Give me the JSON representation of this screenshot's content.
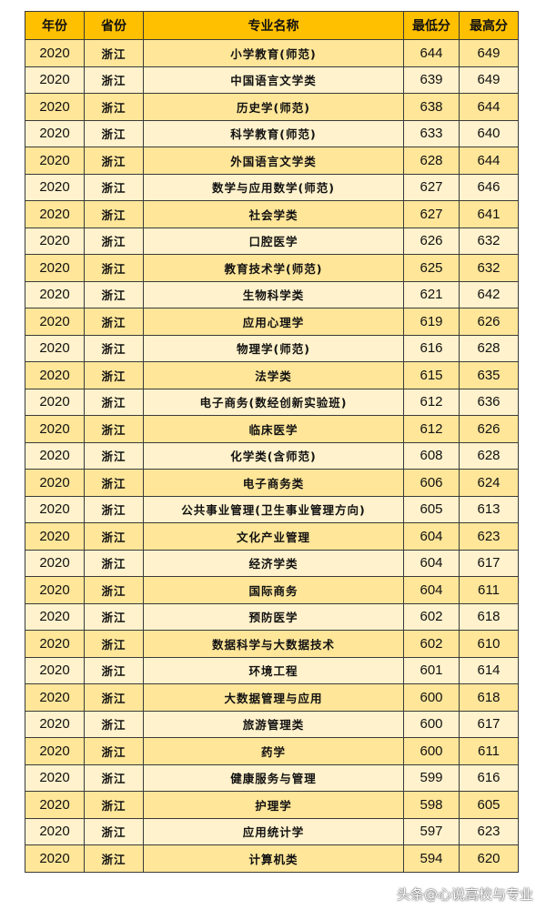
{
  "table": {
    "headers": [
      "年份",
      "省份",
      "专业名称",
      "最低分",
      "最高分"
    ],
    "rows": [
      [
        "2020",
        "浙江",
        "小学教育(师范)",
        "644",
        "649"
      ],
      [
        "2020",
        "浙江",
        "中国语言文学类",
        "639",
        "649"
      ],
      [
        "2020",
        "浙江",
        "历史学(师范)",
        "638",
        "644"
      ],
      [
        "2020",
        "浙江",
        "科学教育(师范)",
        "633",
        "640"
      ],
      [
        "2020",
        "浙江",
        "外国语言文学类",
        "628",
        "644"
      ],
      [
        "2020",
        "浙江",
        "数学与应用数学(师范)",
        "627",
        "646"
      ],
      [
        "2020",
        "浙江",
        "社会学类",
        "627",
        "641"
      ],
      [
        "2020",
        "浙江",
        "口腔医学",
        "626",
        "632"
      ],
      [
        "2020",
        "浙江",
        "教育技术学(师范)",
        "625",
        "632"
      ],
      [
        "2020",
        "浙江",
        "生物科学类",
        "621",
        "642"
      ],
      [
        "2020",
        "浙江",
        "应用心理学",
        "619",
        "626"
      ],
      [
        "2020",
        "浙江",
        "物理学(师范)",
        "616",
        "628"
      ],
      [
        "2020",
        "浙江",
        "法学类",
        "615",
        "635"
      ],
      [
        "2020",
        "浙江",
        "电子商务(数经创新实验班)",
        "612",
        "636"
      ],
      [
        "2020",
        "浙江",
        "临床医学",
        "612",
        "626"
      ],
      [
        "2020",
        "浙江",
        "化学类(含师范)",
        "608",
        "628"
      ],
      [
        "2020",
        "浙江",
        "电子商务类",
        "606",
        "624"
      ],
      [
        "2020",
        "浙江",
        "公共事业管理(卫生事业管理方向)",
        "605",
        "613"
      ],
      [
        "2020",
        "浙江",
        "文化产业管理",
        "604",
        "623"
      ],
      [
        "2020",
        "浙江",
        "经济学类",
        "604",
        "617"
      ],
      [
        "2020",
        "浙江",
        "国际商务",
        "604",
        "611"
      ],
      [
        "2020",
        "浙江",
        "预防医学",
        "602",
        "618"
      ],
      [
        "2020",
        "浙江",
        "数据科学与大数据技术",
        "602",
        "610"
      ],
      [
        "2020",
        "浙江",
        "环境工程",
        "601",
        "614"
      ],
      [
        "2020",
        "浙江",
        "大数据管理与应用",
        "600",
        "618"
      ],
      [
        "2020",
        "浙江",
        "旅游管理类",
        "600",
        "617"
      ],
      [
        "2020",
        "浙江",
        "药学",
        "600",
        "611"
      ],
      [
        "2020",
        "浙江",
        "健康服务与管理",
        "599",
        "616"
      ],
      [
        "2020",
        "浙江",
        "护理学",
        "598",
        "605"
      ],
      [
        "2020",
        "浙江",
        "应用统计学",
        "597",
        "623"
      ],
      [
        "2020",
        "浙江",
        "计算机类",
        "594",
        "620"
      ]
    ]
  },
  "watermark": "头条@心说高校与专业",
  "colors": {
    "header": "#FFC000",
    "row_odd": "#FFE699",
    "row_even": "#FFF2CC"
  }
}
